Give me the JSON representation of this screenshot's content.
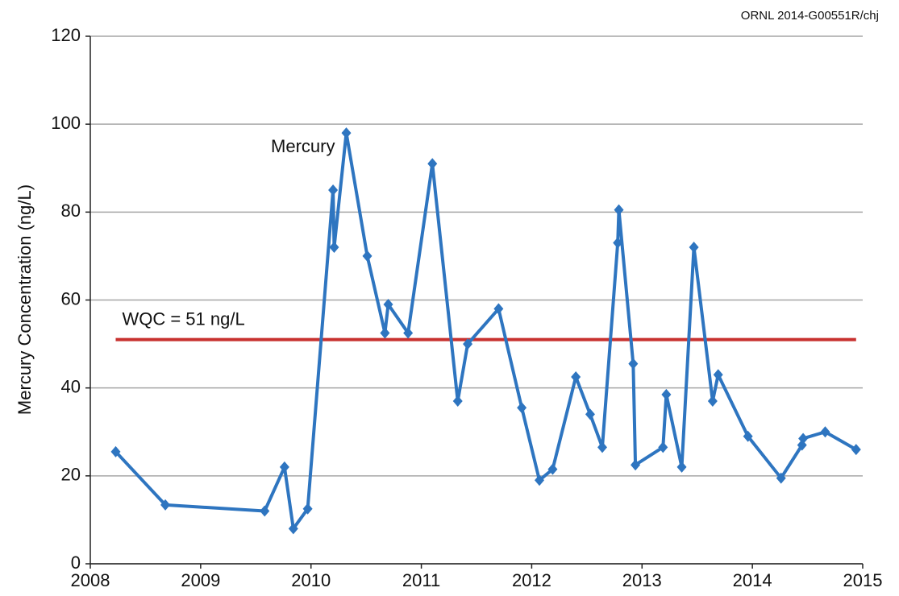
{
  "chart_data": {
    "type": "line",
    "credit": "ORNL 2014-G00551R/chj",
    "ylabel": "Mercury Concentration (ng/L)",
    "xlim": [
      2008,
      2015
    ],
    "xticks": [
      2008,
      2009,
      2010,
      2011,
      2012,
      2013,
      2014,
      2015
    ],
    "ylim": [
      0,
      120
    ],
    "yticks": [
      0,
      20,
      40,
      60,
      80,
      100,
      120
    ],
    "grid": true,
    "series": [
      {
        "name": "Mercury",
        "color": "#2e75c0",
        "x": [
          2008.23,
          2008.68,
          2009.58,
          2009.76,
          2009.84,
          2009.97,
          2010.2,
          2010.21,
          2010.32,
          2010.51,
          2010.67,
          2010.7,
          2010.88,
          2011.1,
          2011.33,
          2011.42,
          2011.7,
          2011.91,
          2012.07,
          2012.19,
          2012.4,
          2012.53,
          2012.64,
          2012.78,
          2012.79,
          2012.92,
          2012.94,
          2013.19,
          2013.22,
          2013.36,
          2013.47,
          2013.64,
          2013.69,
          2013.96,
          2014.26,
          2014.45,
          2014.46,
          2014.66,
          2014.94
        ],
        "values": [
          25.5,
          13.4,
          12,
          22,
          8,
          12.5,
          85,
          72,
          98,
          70,
          52.5,
          59,
          52.5,
          91,
          37,
          50,
          58,
          35.5,
          19,
          21.5,
          42.5,
          34,
          26.5,
          73,
          80.5,
          45.5,
          22.5,
          26.5,
          38.5,
          22,
          72,
          37,
          43,
          29,
          19.5,
          27,
          28.5,
          30,
          26
        ]
      }
    ],
    "threshold": {
      "label": "WQC = 51 ng/L",
      "value": 51,
      "x": [
        2008.23,
        2014.94
      ],
      "color": "#c8312f"
    }
  }
}
